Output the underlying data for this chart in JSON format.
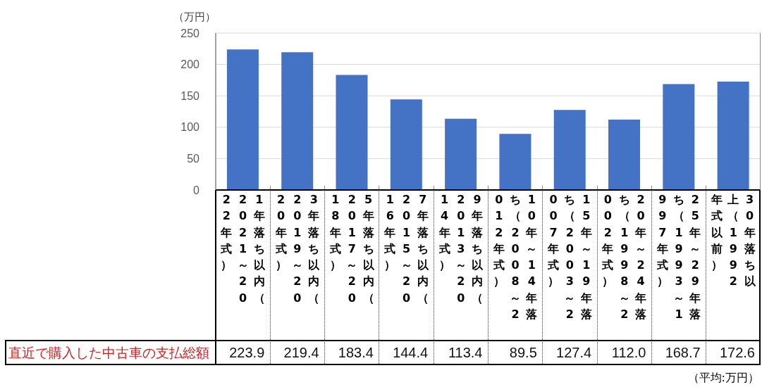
{
  "chart_data": {
    "type": "bar",
    "ylabel": "（万円）",
    "categories": [
      "1年落ち以内（2021～2022年式）",
      "3年落ち以内（2019～2020年式）",
      "5年落ち以内（2017～2018年式）",
      "7年落ち以内（2015～2016年式）",
      "9年落ち以内（2013～2014年式）",
      "10年～14年落ち（2008～2012年式）",
      "15年～19年落ち（2003～2007年式）",
      "20年～24年落ち（1998～2002年式）",
      "25年～29年落ち（1993～1997年式）",
      "30年落ち以上（1992年式以前）"
    ],
    "series": [
      {
        "name": "直近で購入した中古車の支払総額",
        "color": "#4472c4",
        "values": [
          223.9,
          219.4,
          183.4,
          144.4,
          113.4,
          89.5,
          127.4,
          112.0,
          168.7,
          172.6
        ],
        "value_labels": [
          "223.9",
          "219.4",
          "183.4",
          "144.4",
          "113.4",
          "89.5",
          "127.4",
          "112.0",
          "168.7",
          "172.6"
        ]
      }
    ],
    "ylim": [
      0,
      250
    ],
    "yticks": [
      0,
      50,
      100,
      150,
      200,
      250
    ],
    "grid": "y",
    "annotations": [
      "（平均:万円）"
    ]
  }
}
